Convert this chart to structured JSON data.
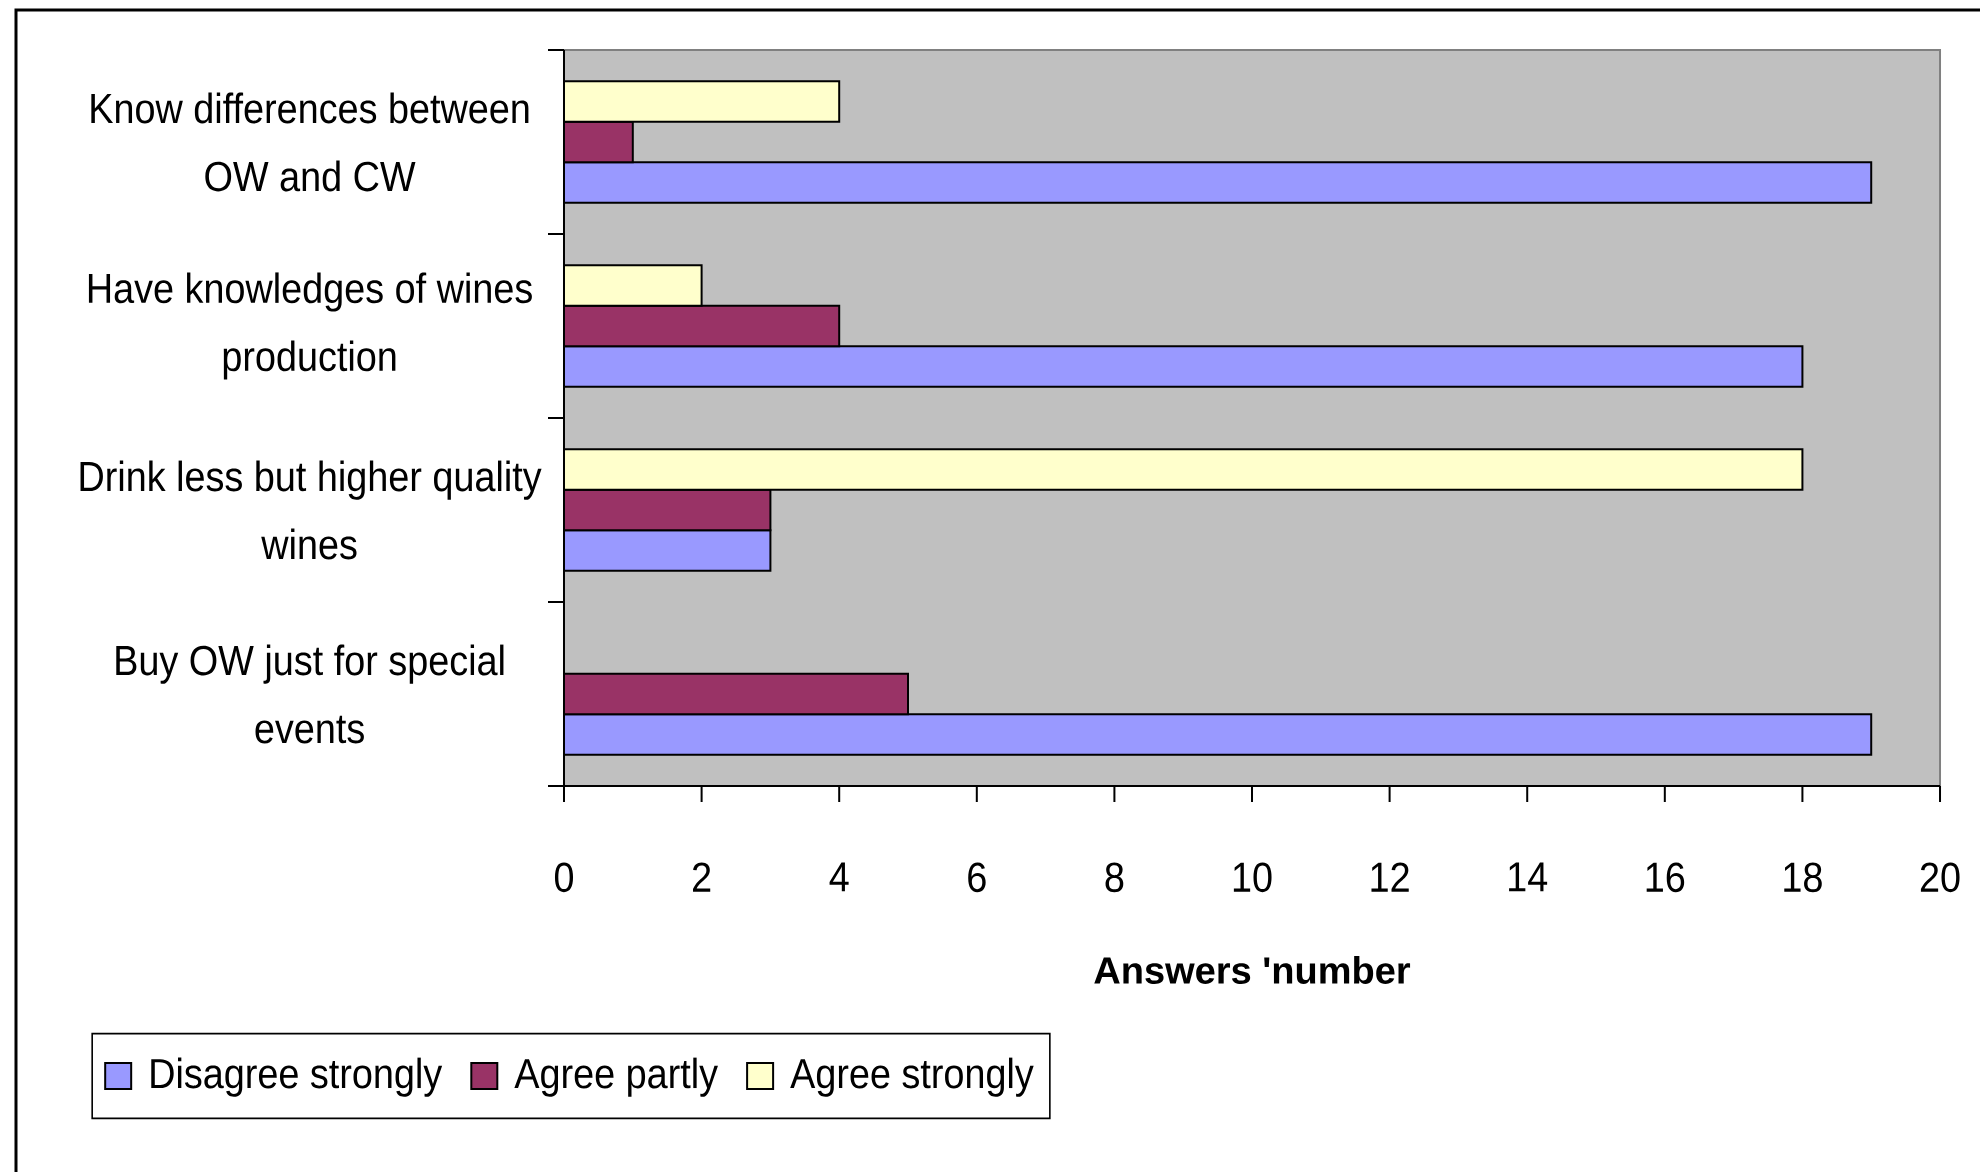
{
  "chart_data": {
    "type": "bar",
    "orientation": "horizontal",
    "categories": [
      "Know differences between OW and CW",
      "Have knowledges of wines production",
      "Drink less but higher quality wines",
      "Buy OW just for special events"
    ],
    "series": [
      {
        "name": "Disagree strongly",
        "color": "#9999ff",
        "values": [
          19,
          18,
          3,
          19
        ]
      },
      {
        "name": "Agree partly",
        "color": "#993366",
        "values": [
          1,
          4,
          3,
          5
        ]
      },
      {
        "name": "Agree strongly",
        "color": "#ffffcc",
        "values": [
          4,
          2,
          18,
          null
        ]
      }
    ],
    "xlabel": "Answers 'number",
    "xlim": [
      0,
      20
    ],
    "xticks": [
      0,
      2,
      4,
      6,
      8,
      10,
      12,
      14,
      16,
      18,
      20
    ],
    "legend": "bottom"
  }
}
